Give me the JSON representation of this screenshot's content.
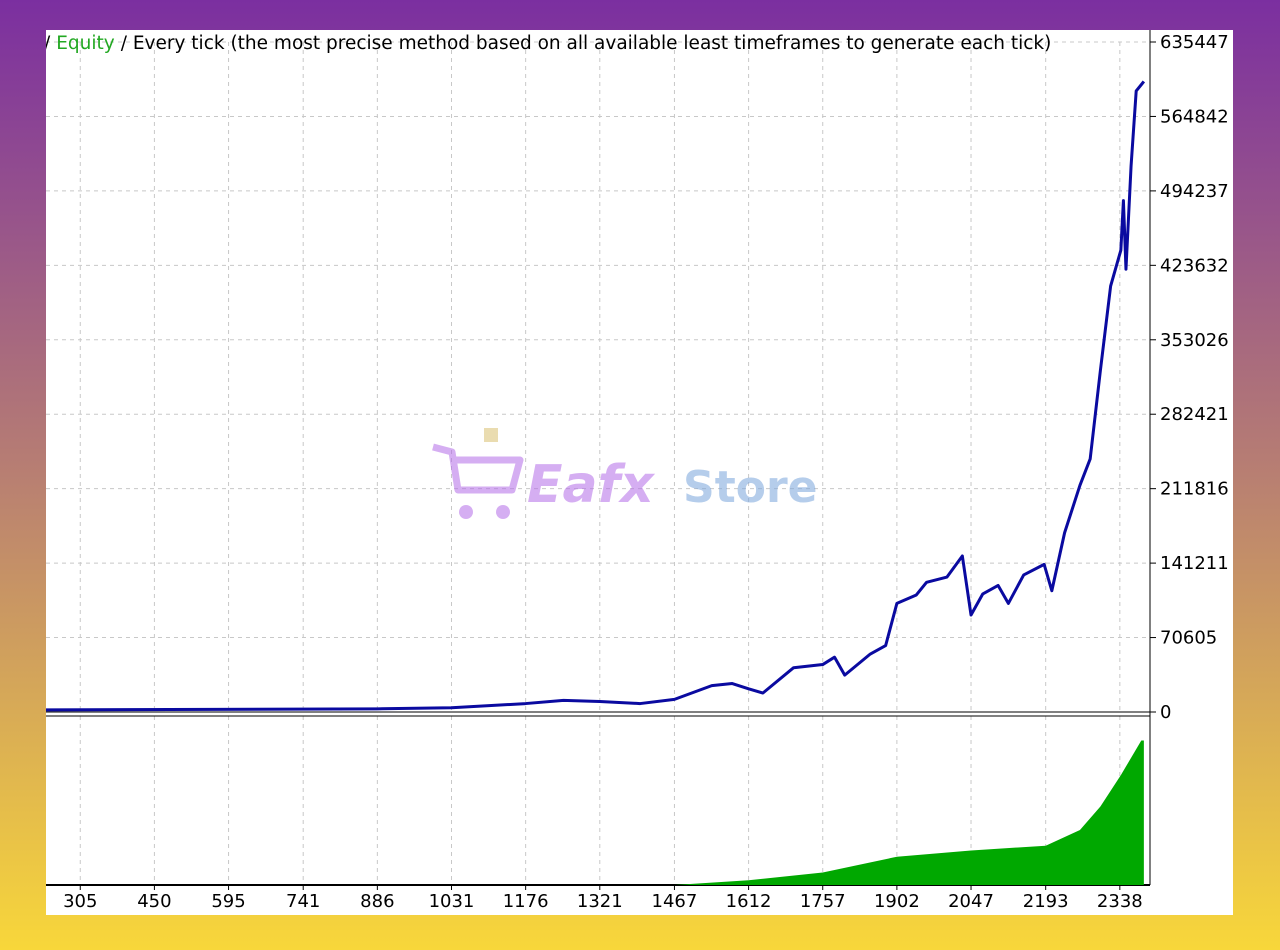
{
  "watermark": [
    "Eafx",
    "Store"
  ],
  "chart_data": [
    {
      "type": "line",
      "title_prefix": "/",
      "title": "/ Every tick (the most precise method based on all available least timeframes to generate each tick)",
      "x": [
        238,
        886,
        1031,
        1176,
        1250,
        1321,
        1400,
        1467,
        1540,
        1580,
        1612,
        1640,
        1700,
        1757,
        1780,
        1800,
        1850,
        1880,
        1902,
        1940,
        1960,
        2000,
        2030,
        2047,
        2070,
        2100,
        2120,
        2150,
        2190,
        2205,
        2230,
        2260,
        2280,
        2300,
        2320,
        2340,
        2345,
        2350,
        2360,
        2370,
        2385
      ],
      "series": [
        {
          "name": "Equity",
          "legend_color": "#22a822",
          "color": "#0a0aa0",
          "values": [
            2000,
            3000,
            4000,
            8000,
            11000,
            10000,
            8000,
            12000,
            25000,
            27000,
            22000,
            18000,
            42000,
            45000,
            52000,
            35000,
            55000,
            63000,
            103000,
            111000,
            123000,
            128000,
            148000,
            92000,
            112000,
            120000,
            103000,
            130000,
            140000,
            115000,
            170000,
            215000,
            240000,
            324000,
            404000,
            438000,
            485000,
            420000,
            518000,
            589000,
            598000
          ]
        }
      ],
      "xlim": [
        238,
        2397
      ],
      "ylim": [
        0,
        635447
      ],
      "xticks": [
        305,
        450,
        595,
        741,
        886,
        1031,
        1176,
        1321,
        1467,
        1612,
        1757,
        1902,
        2047,
        2193,
        2338
      ],
      "yticks": [
        0,
        70605,
        141211,
        211816,
        282421,
        353026,
        423632,
        494237,
        564842,
        635447
      ],
      "grid": true
    },
    {
      "type": "area",
      "color": "#00a800",
      "x": [
        1467,
        1612,
        1757,
        1902,
        2047,
        2193,
        2260,
        2300,
        2340,
        2380,
        2385
      ],
      "values": [
        0,
        3,
        8,
        18,
        22,
        25,
        35,
        50,
        70,
        92,
        92
      ],
      "xlim": [
        238,
        2397
      ],
      "ylim": [
        0,
        100
      ]
    }
  ]
}
